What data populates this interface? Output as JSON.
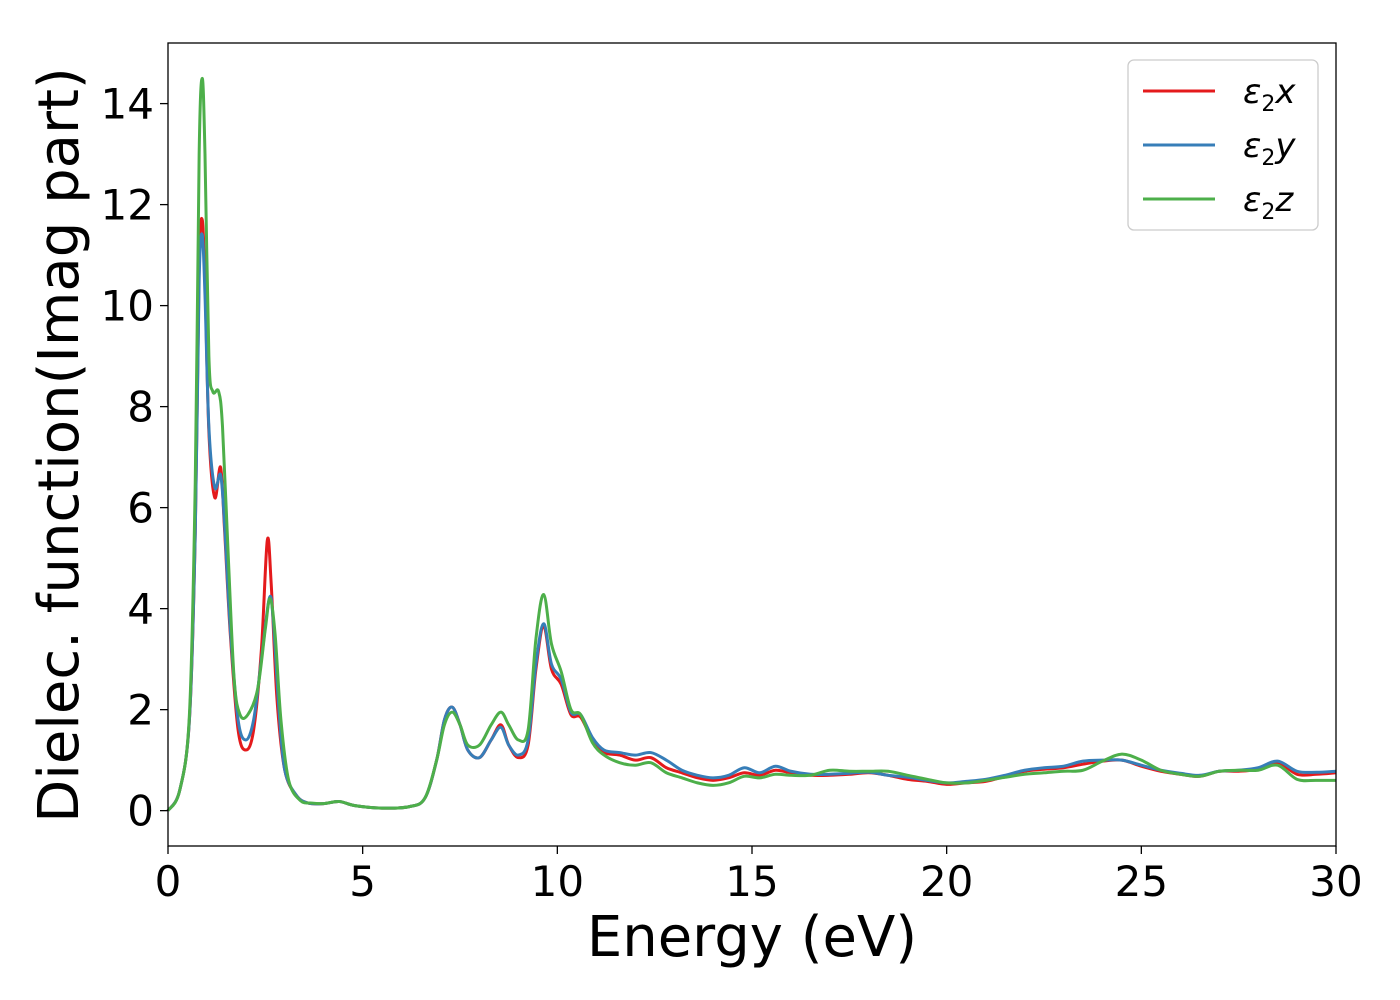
{
  "chart_data": {
    "type": "line",
    "xlabel": "Energy (eV)",
    "ylabel": "Dielec. function(Imag part)",
    "xlim": [
      0,
      30
    ],
    "ylim": [
      -0.7,
      15.2
    ],
    "xticks": [
      "0",
      "5",
      "10",
      "15",
      "20",
      "25",
      "30"
    ],
    "yticks": [
      "0",
      "2",
      "4",
      "6",
      "8",
      "10",
      "12",
      "14"
    ],
    "grid": false,
    "legend_position": "top-right",
    "series": [
      {
        "name": "ε2x",
        "legend": {
          "base": "ε",
          "sub": "2",
          "suffix": "x"
        },
        "color": "#e41a1c",
        "points": [
          [
            0,
            0
          ],
          [
            0.3,
            0.4
          ],
          [
            0.55,
            1.8
          ],
          [
            0.7,
            5.5
          ],
          [
            0.8,
            10.8
          ],
          [
            0.88,
            11.7
          ],
          [
            0.95,
            10.5
          ],
          [
            1.05,
            7.5
          ],
          [
            1.2,
            6.2
          ],
          [
            1.35,
            6.8
          ],
          [
            1.45,
            5.6
          ],
          [
            1.6,
            3.5
          ],
          [
            1.8,
            1.6
          ],
          [
            2.0,
            1.2
          ],
          [
            2.2,
            1.6
          ],
          [
            2.4,
            3.2
          ],
          [
            2.55,
            5.35
          ],
          [
            2.65,
            4.5
          ],
          [
            2.8,
            2.2
          ],
          [
            3.0,
            0.8
          ],
          [
            3.3,
            0.3
          ],
          [
            3.6,
            0.15
          ],
          [
            4.0,
            0.14
          ],
          [
            4.4,
            0.18
          ],
          [
            4.8,
            0.1
          ],
          [
            5.5,
            0.05
          ],
          [
            6.2,
            0.08
          ],
          [
            6.6,
            0.25
          ],
          [
            6.9,
            1.0
          ],
          [
            7.1,
            1.8
          ],
          [
            7.3,
            2.05
          ],
          [
            7.5,
            1.7
          ],
          [
            7.7,
            1.2
          ],
          [
            8.0,
            1.05
          ],
          [
            8.3,
            1.4
          ],
          [
            8.55,
            1.7
          ],
          [
            8.75,
            1.3
          ],
          [
            9.0,
            1.05
          ],
          [
            9.25,
            1.3
          ],
          [
            9.45,
            2.8
          ],
          [
            9.65,
            3.65
          ],
          [
            9.85,
            2.8
          ],
          [
            10.1,
            2.5
          ],
          [
            10.35,
            1.9
          ],
          [
            10.6,
            1.85
          ],
          [
            10.9,
            1.4
          ],
          [
            11.2,
            1.15
          ],
          [
            11.6,
            1.1
          ],
          [
            12.0,
            1.0
          ],
          [
            12.4,
            1.05
          ],
          [
            12.8,
            0.85
          ],
          [
            13.2,
            0.75
          ],
          [
            13.6,
            0.65
          ],
          [
            14.0,
            0.6
          ],
          [
            14.4,
            0.65
          ],
          [
            14.8,
            0.75
          ],
          [
            15.2,
            0.7
          ],
          [
            15.6,
            0.8
          ],
          [
            16.0,
            0.75
          ],
          [
            16.5,
            0.7
          ],
          [
            17.0,
            0.7
          ],
          [
            17.5,
            0.72
          ],
          [
            18.0,
            0.75
          ],
          [
            18.5,
            0.7
          ],
          [
            19.0,
            0.62
          ],
          [
            19.5,
            0.58
          ],
          [
            20.0,
            0.52
          ],
          [
            20.5,
            0.55
          ],
          [
            21.0,
            0.58
          ],
          [
            21.5,
            0.68
          ],
          [
            22.0,
            0.78
          ],
          [
            22.5,
            0.82
          ],
          [
            23.0,
            0.85
          ],
          [
            23.5,
            0.92
          ],
          [
            24.0,
            0.98
          ],
          [
            24.5,
            1.0
          ],
          [
            25.0,
            0.88
          ],
          [
            25.5,
            0.78
          ],
          [
            26.0,
            0.72
          ],
          [
            26.5,
            0.68
          ],
          [
            27.0,
            0.78
          ],
          [
            27.5,
            0.78
          ],
          [
            28.0,
            0.82
          ],
          [
            28.5,
            0.95
          ],
          [
            29.0,
            0.72
          ],
          [
            29.5,
            0.72
          ],
          [
            30.0,
            0.75
          ]
        ]
      },
      {
        "name": "ε2y",
        "legend": {
          "base": "ε",
          "sub": "2",
          "suffix": "y"
        },
        "color": "#377eb8",
        "points": [
          [
            0,
            0
          ],
          [
            0.3,
            0.4
          ],
          [
            0.55,
            1.8
          ],
          [
            0.7,
            5.5
          ],
          [
            0.8,
            10.5
          ],
          [
            0.88,
            11.4
          ],
          [
            0.95,
            10.2
          ],
          [
            1.05,
            7.6
          ],
          [
            1.2,
            6.4
          ],
          [
            1.35,
            6.65
          ],
          [
            1.45,
            5.7
          ],
          [
            1.6,
            3.6
          ],
          [
            1.8,
            1.8
          ],
          [
            2.0,
            1.4
          ],
          [
            2.2,
            1.8
          ],
          [
            2.4,
            3.0
          ],
          [
            2.6,
            4.2
          ],
          [
            2.7,
            3.8
          ],
          [
            2.85,
            2.0
          ],
          [
            3.0,
            0.8
          ],
          [
            3.3,
            0.3
          ],
          [
            3.6,
            0.15
          ],
          [
            4.0,
            0.14
          ],
          [
            4.4,
            0.18
          ],
          [
            4.8,
            0.1
          ],
          [
            5.5,
            0.05
          ],
          [
            6.2,
            0.08
          ],
          [
            6.6,
            0.25
          ],
          [
            6.9,
            1.0
          ],
          [
            7.1,
            1.8
          ],
          [
            7.3,
            2.05
          ],
          [
            7.5,
            1.7
          ],
          [
            7.7,
            1.2
          ],
          [
            8.0,
            1.05
          ],
          [
            8.3,
            1.4
          ],
          [
            8.55,
            1.65
          ],
          [
            8.75,
            1.3
          ],
          [
            9.0,
            1.1
          ],
          [
            9.25,
            1.4
          ],
          [
            9.45,
            2.9
          ],
          [
            9.65,
            3.7
          ],
          [
            9.85,
            2.9
          ],
          [
            10.1,
            2.6
          ],
          [
            10.35,
            1.95
          ],
          [
            10.6,
            1.9
          ],
          [
            10.9,
            1.45
          ],
          [
            11.2,
            1.2
          ],
          [
            11.6,
            1.15
          ],
          [
            12.0,
            1.1
          ],
          [
            12.4,
            1.15
          ],
          [
            12.8,
            1.0
          ],
          [
            13.2,
            0.8
          ],
          [
            13.6,
            0.7
          ],
          [
            14.0,
            0.65
          ],
          [
            14.4,
            0.7
          ],
          [
            14.8,
            0.85
          ],
          [
            15.2,
            0.75
          ],
          [
            15.6,
            0.88
          ],
          [
            16.0,
            0.78
          ],
          [
            16.5,
            0.72
          ],
          [
            17.0,
            0.72
          ],
          [
            17.5,
            0.74
          ],
          [
            18.0,
            0.76
          ],
          [
            18.5,
            0.7
          ],
          [
            19.0,
            0.66
          ],
          [
            19.5,
            0.6
          ],
          [
            20.0,
            0.55
          ],
          [
            20.5,
            0.58
          ],
          [
            21.0,
            0.62
          ],
          [
            21.5,
            0.7
          ],
          [
            22.0,
            0.8
          ],
          [
            22.5,
            0.85
          ],
          [
            23.0,
            0.88
          ],
          [
            23.5,
            0.98
          ],
          [
            24.0,
            1.0
          ],
          [
            24.5,
            1.0
          ],
          [
            25.0,
            0.9
          ],
          [
            25.5,
            0.8
          ],
          [
            26.0,
            0.74
          ],
          [
            26.5,
            0.7
          ],
          [
            27.0,
            0.78
          ],
          [
            27.5,
            0.8
          ],
          [
            28.0,
            0.85
          ],
          [
            28.5,
            0.98
          ],
          [
            29.0,
            0.78
          ],
          [
            29.5,
            0.76
          ],
          [
            30.0,
            0.78
          ]
        ]
      },
      {
        "name": "ε2z",
        "legend": {
          "base": "ε",
          "sub": "2",
          "suffix": "z"
        },
        "color": "#4daf4a",
        "points": [
          [
            0,
            0
          ],
          [
            0.3,
            0.4
          ],
          [
            0.55,
            1.9
          ],
          [
            0.7,
            6.5
          ],
          [
            0.8,
            13.0
          ],
          [
            0.88,
            14.5
          ],
          [
            0.95,
            13.0
          ],
          [
            1.05,
            9.0
          ],
          [
            1.15,
            8.3
          ],
          [
            1.3,
            8.3
          ],
          [
            1.4,
            7.6
          ],
          [
            1.55,
            5.0
          ],
          [
            1.7,
            2.6
          ],
          [
            1.85,
            1.9
          ],
          [
            2.05,
            1.9
          ],
          [
            2.3,
            2.4
          ],
          [
            2.5,
            3.6
          ],
          [
            2.62,
            4.2
          ],
          [
            2.75,
            3.5
          ],
          [
            2.9,
            1.8
          ],
          [
            3.1,
            0.6
          ],
          [
            3.4,
            0.2
          ],
          [
            3.7,
            0.15
          ],
          [
            4.0,
            0.14
          ],
          [
            4.4,
            0.18
          ],
          [
            4.8,
            0.1
          ],
          [
            5.5,
            0.05
          ],
          [
            6.2,
            0.08
          ],
          [
            6.6,
            0.25
          ],
          [
            6.9,
            1.0
          ],
          [
            7.1,
            1.7
          ],
          [
            7.3,
            1.95
          ],
          [
            7.5,
            1.7
          ],
          [
            7.7,
            1.3
          ],
          [
            8.0,
            1.3
          ],
          [
            8.3,
            1.7
          ],
          [
            8.55,
            1.95
          ],
          [
            8.75,
            1.7
          ],
          [
            9.0,
            1.4
          ],
          [
            9.25,
            1.6
          ],
          [
            9.45,
            3.4
          ],
          [
            9.65,
            4.28
          ],
          [
            9.85,
            3.3
          ],
          [
            10.1,
            2.75
          ],
          [
            10.35,
            2.0
          ],
          [
            10.6,
            1.9
          ],
          [
            10.9,
            1.35
          ],
          [
            11.2,
            1.1
          ],
          [
            11.6,
            0.95
          ],
          [
            12.0,
            0.9
          ],
          [
            12.4,
            0.95
          ],
          [
            12.8,
            0.75
          ],
          [
            13.2,
            0.65
          ],
          [
            13.6,
            0.55
          ],
          [
            14.0,
            0.5
          ],
          [
            14.4,
            0.55
          ],
          [
            14.8,
            0.68
          ],
          [
            15.2,
            0.65
          ],
          [
            15.6,
            0.72
          ],
          [
            16.0,
            0.7
          ],
          [
            16.5,
            0.7
          ],
          [
            17.0,
            0.8
          ],
          [
            17.5,
            0.78
          ],
          [
            18.0,
            0.78
          ],
          [
            18.5,
            0.78
          ],
          [
            19.0,
            0.7
          ],
          [
            19.5,
            0.62
          ],
          [
            20.0,
            0.55
          ],
          [
            20.5,
            0.55
          ],
          [
            21.0,
            0.6
          ],
          [
            21.5,
            0.66
          ],
          [
            22.0,
            0.72
          ],
          [
            22.5,
            0.75
          ],
          [
            23.0,
            0.78
          ],
          [
            23.5,
            0.8
          ],
          [
            24.0,
            0.98
          ],
          [
            24.5,
            1.12
          ],
          [
            25.0,
            1.0
          ],
          [
            25.5,
            0.8
          ],
          [
            26.0,
            0.72
          ],
          [
            26.5,
            0.68
          ],
          [
            27.0,
            0.78
          ],
          [
            27.5,
            0.8
          ],
          [
            28.0,
            0.8
          ],
          [
            28.5,
            0.9
          ],
          [
            29.0,
            0.62
          ],
          [
            29.5,
            0.6
          ],
          [
            30.0,
            0.6
          ]
        ]
      }
    ]
  }
}
